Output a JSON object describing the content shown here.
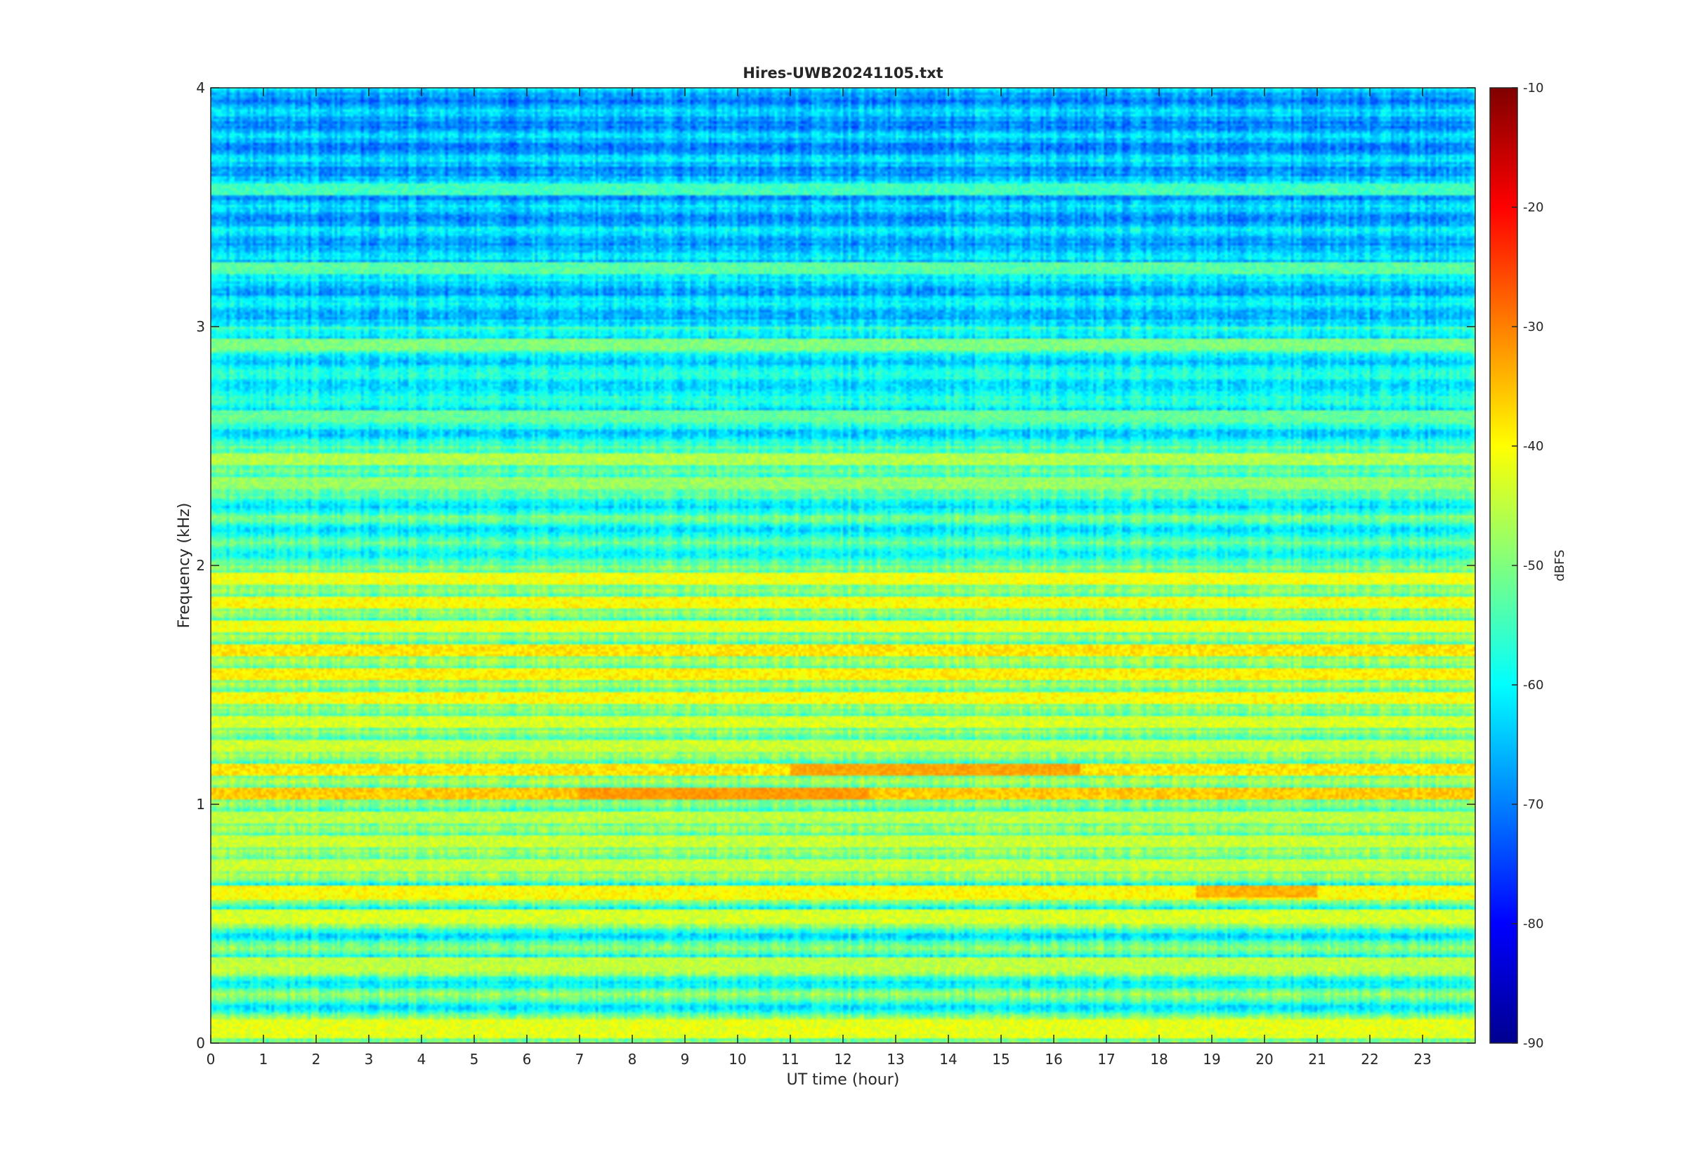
{
  "chart_data": {
    "type": "heatmap",
    "title": "Hires-UWB20241105.txt",
    "xlabel": "UT time (hour)",
    "ylabel": "Frequency (kHz)",
    "xlim": [
      0,
      24
    ],
    "ylim": [
      0,
      4
    ],
    "x_ticks": [
      0,
      1,
      2,
      3,
      4,
      5,
      6,
      7,
      8,
      9,
      10,
      11,
      12,
      13,
      14,
      15,
      16,
      17,
      18,
      19,
      20,
      21,
      22,
      23
    ],
    "y_ticks": [
      0,
      1,
      2,
      3,
      4
    ],
    "colorbar": {
      "label": "dBFS",
      "limits": [
        -90,
        -10
      ],
      "ticks": [
        -90,
        -80,
        -70,
        -60,
        -50,
        -40,
        -30,
        -20,
        -10
      ],
      "colormap": "jet"
    },
    "bands": [
      {
        "freq_khz": [
          0.0,
          0.01
        ],
        "level_dbfs": -75
      },
      {
        "freq_khz": [
          0.02,
          0.1
        ],
        "level_dbfs": -42
      },
      {
        "freq_khz": [
          0.3,
          0.36
        ],
        "level_dbfs": -45
      },
      {
        "freq_khz": [
          0.5,
          0.56
        ],
        "level_dbfs": -43
      },
      {
        "freq_khz": [
          0.6,
          0.66
        ],
        "level_dbfs": -40
      },
      {
        "freq_khz": [
          0.72,
          0.77
        ],
        "level_dbfs": -44
      },
      {
        "freq_khz": [
          0.82,
          0.87
        ],
        "level_dbfs": -44
      },
      {
        "freq_khz": [
          0.92,
          0.97
        ],
        "level_dbfs": -45
      },
      {
        "freq_khz": [
          1.02,
          1.07
        ],
        "level_dbfs": -36
      },
      {
        "freq_khz": [
          1.12,
          1.17
        ],
        "level_dbfs": -38
      },
      {
        "freq_khz": [
          1.22,
          1.27
        ],
        "level_dbfs": -44
      },
      {
        "freq_khz": [
          1.32,
          1.37
        ],
        "level_dbfs": -43
      },
      {
        "freq_khz": [
          1.42,
          1.47
        ],
        "level_dbfs": -40
      },
      {
        "freq_khz": [
          1.52,
          1.57
        ],
        "level_dbfs": -39
      },
      {
        "freq_khz": [
          1.62,
          1.67
        ],
        "level_dbfs": -38
      },
      {
        "freq_khz": [
          1.72,
          1.77
        ],
        "level_dbfs": -41
      },
      {
        "freq_khz": [
          1.82,
          1.87
        ],
        "level_dbfs": -40
      },
      {
        "freq_khz": [
          1.92,
          1.97
        ],
        "level_dbfs": -41
      },
      {
        "freq_khz": [
          2.42,
          2.47
        ],
        "level_dbfs": -46
      },
      {
        "freq_khz": [
          2.32,
          2.37
        ],
        "level_dbfs": -48
      },
      {
        "freq_khz": [
          2.6,
          2.65
        ],
        "level_dbfs": -52
      },
      {
        "freq_khz": [
          2.9,
          2.95
        ],
        "level_dbfs": -50
      },
      {
        "freq_khz": [
          3.22,
          3.27
        ],
        "level_dbfs": -53
      },
      {
        "freq_khz": [
          3.55,
          3.6
        ],
        "level_dbfs": -55
      }
    ],
    "hotspots": [
      {
        "time_hour": [
          7.0,
          12.5
        ],
        "freq_khz": [
          1.02,
          1.07
        ],
        "level_dbfs": -32
      },
      {
        "time_hour": [
          11.0,
          16.5
        ],
        "freq_khz": [
          1.12,
          1.17
        ],
        "level_dbfs": -33
      },
      {
        "time_hour": [
          18.7,
          21.0
        ],
        "freq_khz": [
          0.61,
          0.66
        ],
        "level_dbfs": -34
      }
    ]
  }
}
